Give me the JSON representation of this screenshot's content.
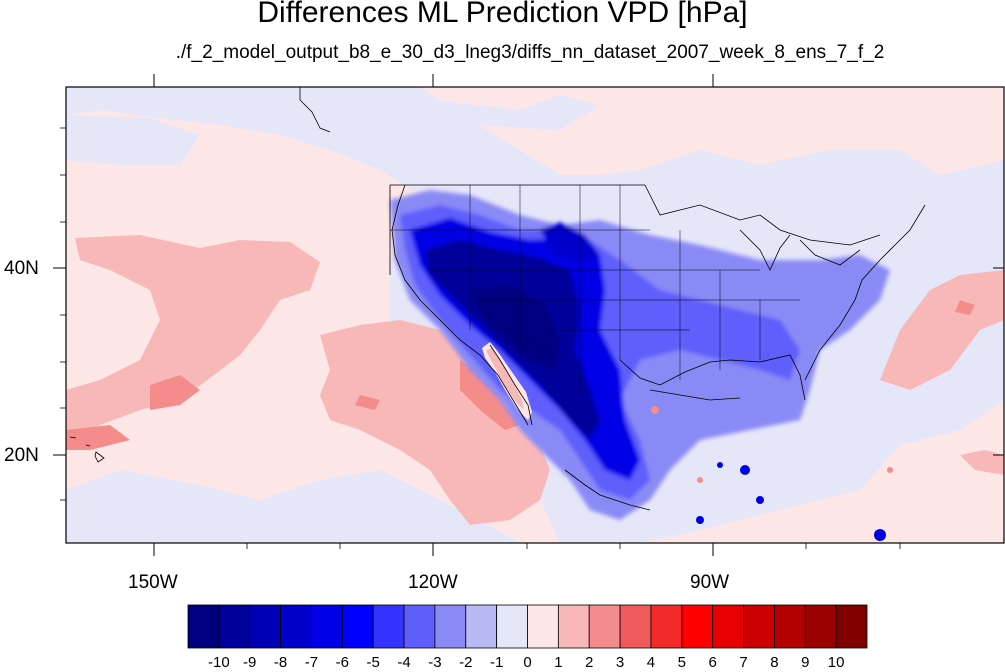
{
  "title": "Differences ML Prediction VPD [hPa]",
  "subtitle": "./f_2_model_output_b8_e_30_d3_lneg3/diffs_nn_dataset_2007_week_8_ens_7_f_2",
  "axes": {
    "x_labels": [
      "150W",
      "120W",
      "90W"
    ],
    "y_labels": [
      "40N",
      "20N"
    ]
  },
  "colorbar": {
    "labels": [
      "-10",
      "-9",
      "-8",
      "-7",
      "-6",
      "-5",
      "-4",
      "-3",
      "-2",
      "-1",
      "0",
      "1",
      "2",
      "3",
      "4",
      "5",
      "6",
      "7",
      "8",
      "9",
      "10"
    ],
    "colors": [
      "#000080",
      "#00009a",
      "#0000b4",
      "#0000cd",
      "#0000e6",
      "#0000ff",
      "#3434ff",
      "#5e5efc",
      "#8a8af6",
      "#b9b9f4",
      "#e6e6f9",
      "#fde6e6",
      "#f8b8b8",
      "#f58c8c",
      "#f05a5a",
      "#f22a2a",
      "#ff0000",
      "#e60000",
      "#cd0000",
      "#b40000",
      "#9a0000",
      "#800000"
    ]
  },
  "chart_data": {
    "type": "heatmap",
    "title": "Differences ML Prediction VPD [hPa]",
    "subtitle": "./f_2_model_output_b8_e_30_d3_lneg3/diffs_nn_dataset_2007_week_8_ens_7_f_2",
    "x_ticks": [
      -150,
      -120,
      -90
    ],
    "y_ticks": [
      40,
      20
    ],
    "lon_range": [
      -160,
      -60
    ],
    "lat_range": [
      10,
      60
    ],
    "levels": [
      -10,
      -9,
      -8,
      -7,
      -6,
      -5,
      -4,
      -3,
      -2,
      -1,
      0,
      1,
      2,
      3,
      4,
      5,
      6,
      7,
      8,
      9,
      10
    ]
  }
}
